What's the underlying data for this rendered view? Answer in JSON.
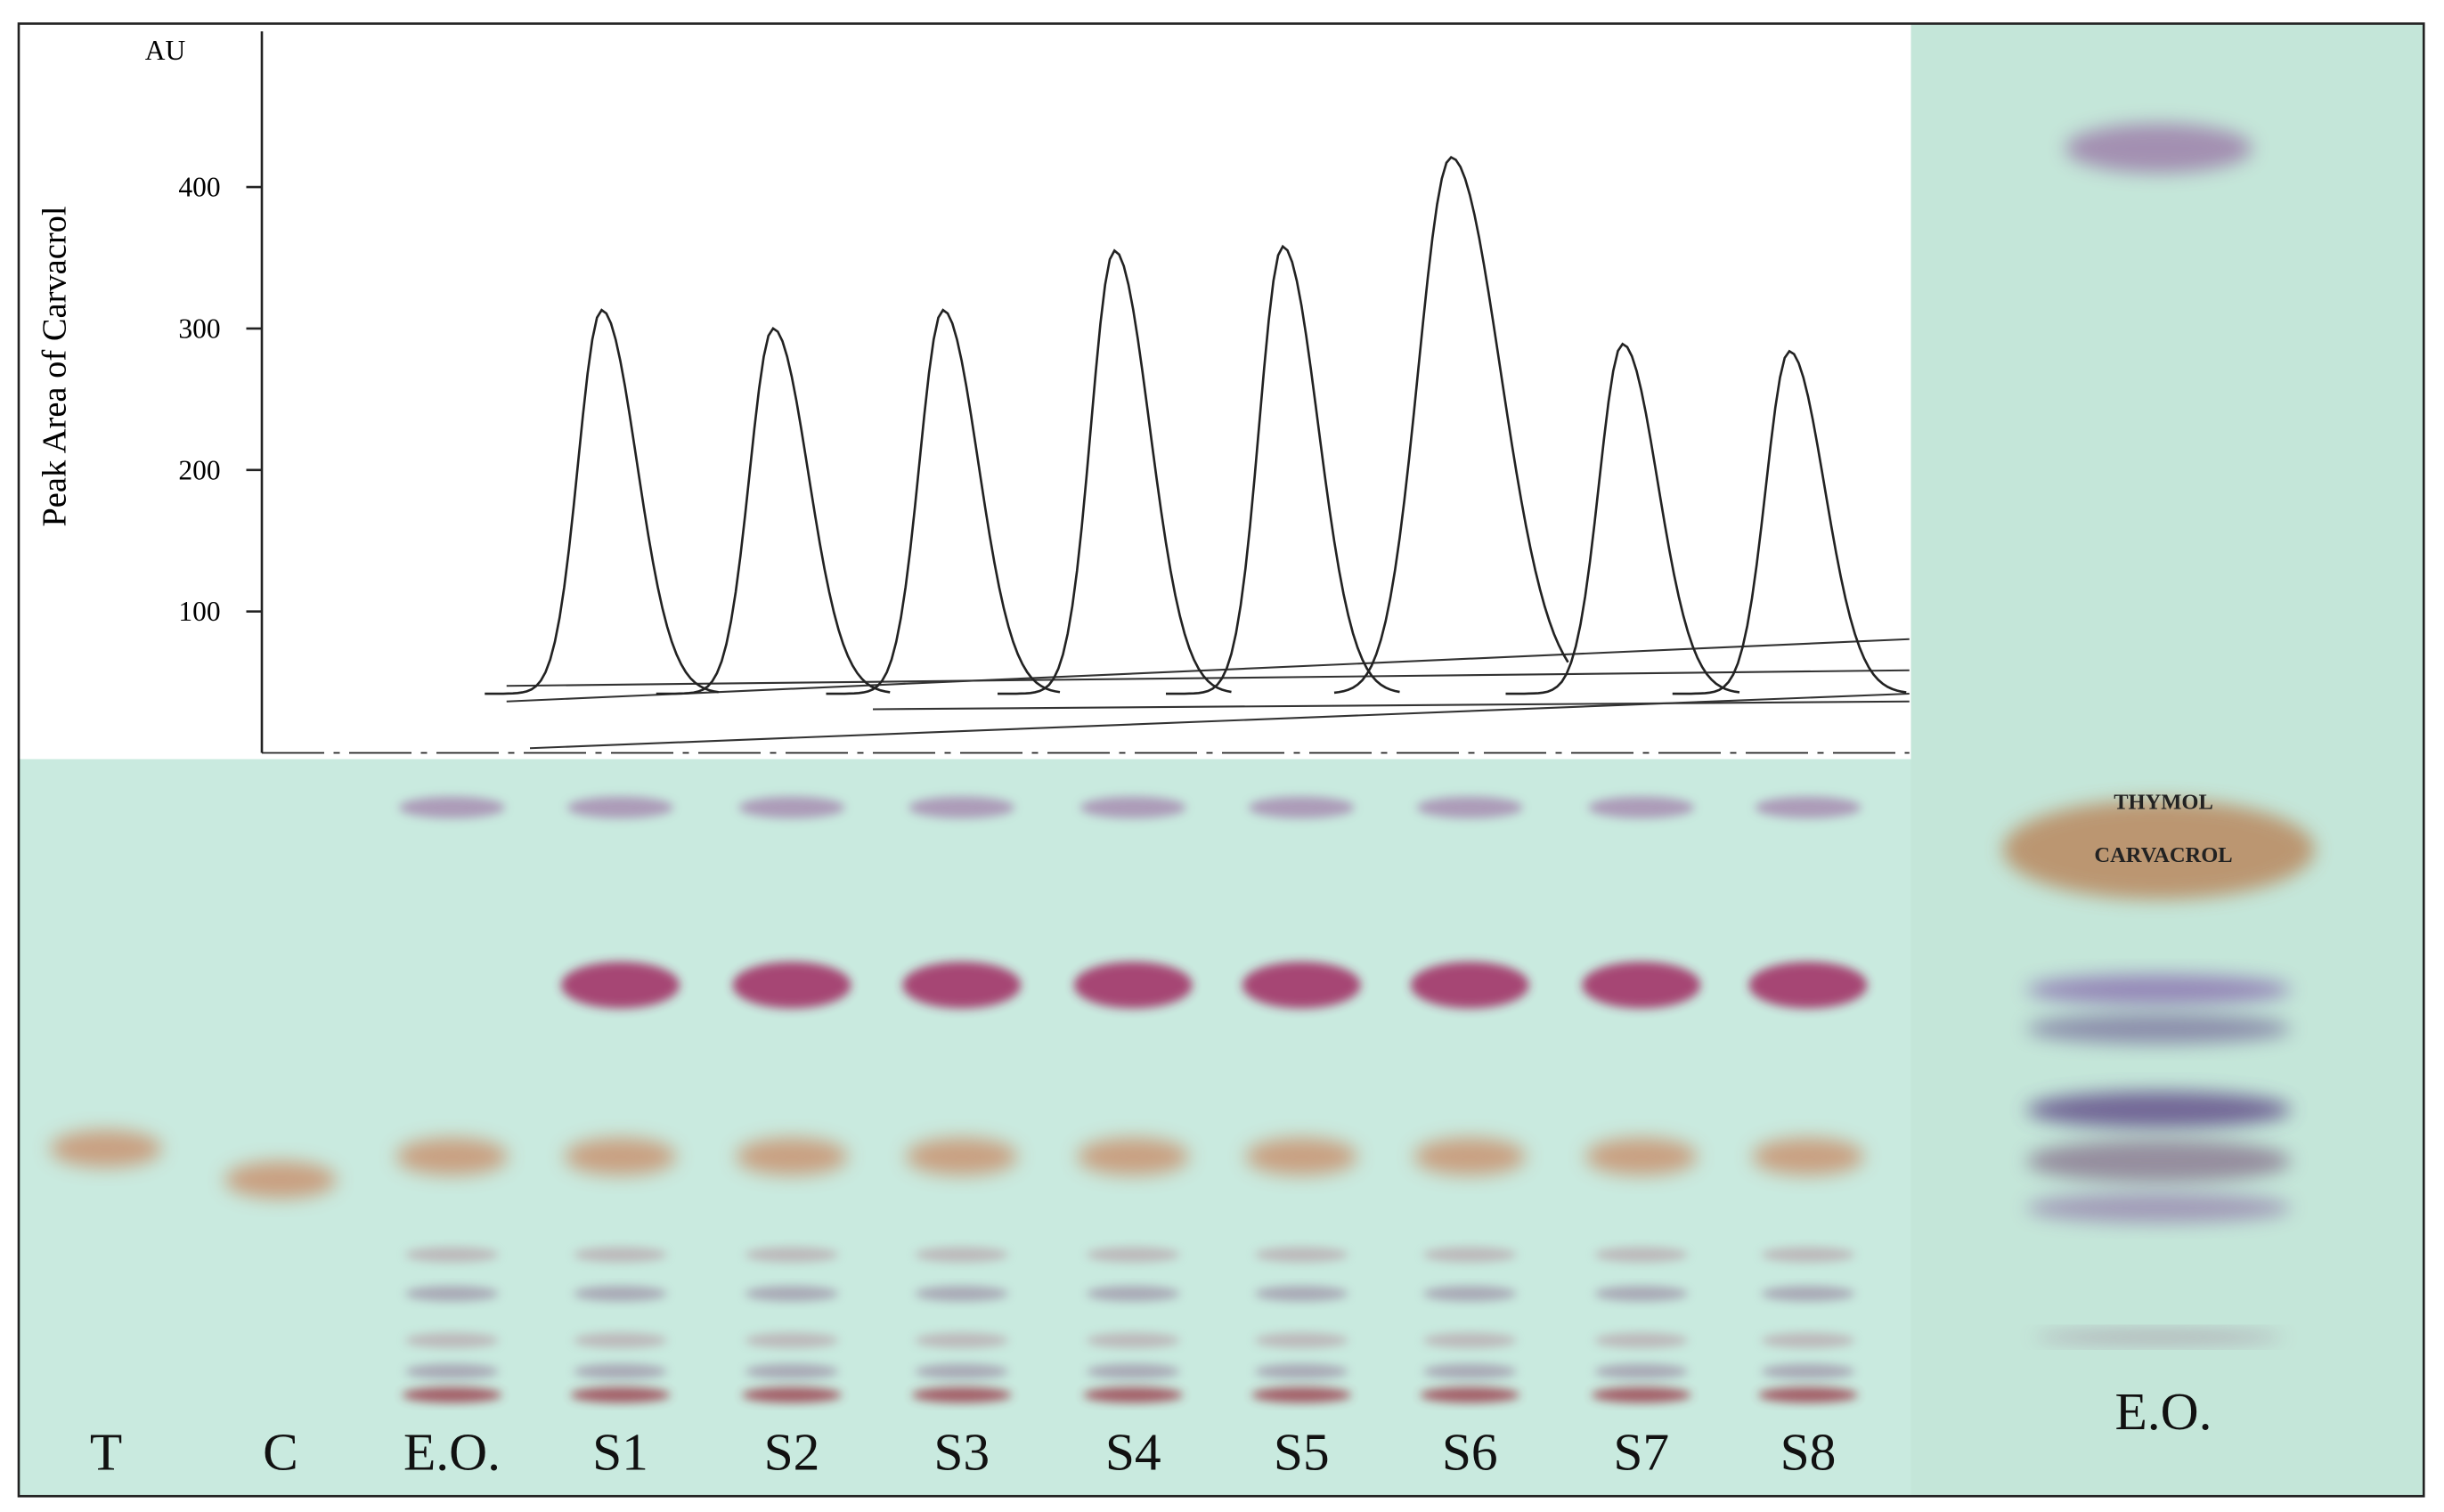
{
  "chart_data": {
    "type": "densitogram",
    "y_axis_label": "Peak Area of Carvacrol",
    "y_unit": "AU",
    "ylim": [
      0,
      510
    ],
    "yticks": [
      100,
      200,
      300,
      400
    ],
    "categories": [
      "T",
      "C",
      "E.O.",
      "S1",
      "S2",
      "S3",
      "S4",
      "S5",
      "S6",
      "S7",
      "S8"
    ],
    "values": [
      null,
      null,
      null,
      313,
      300,
      313,
      355,
      358,
      421,
      289,
      284
    ],
    "color": "#222222"
  },
  "reference_plate": {
    "spot_labels": [
      "THYMOL",
      "CARVACROL"
    ],
    "lane_label": "E.O."
  }
}
